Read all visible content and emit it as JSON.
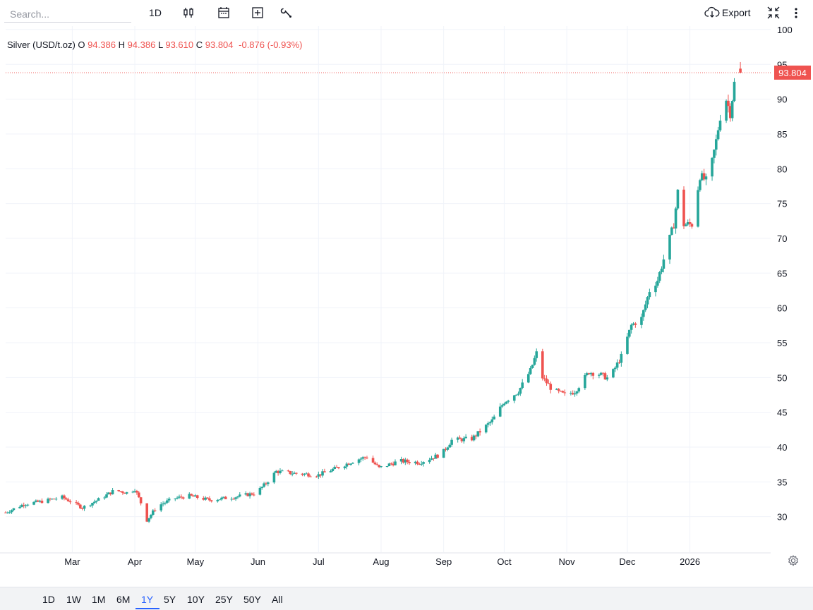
{
  "toolbar": {
    "search_placeholder": "Search...",
    "interval_label": "1D",
    "export_label": "Export"
  },
  "legend": {
    "symbol": "Silver (USD/t.oz)",
    "o_label": "O",
    "o_value": "94.386",
    "h_label": "H",
    "h_value": "94.386",
    "l_label": "L",
    "l_value": "93.610",
    "c_label": "C",
    "c_value": "93.804",
    "change": "-0.876 (-0.93%)"
  },
  "price_tag": "93.804",
  "ranges": [
    "1D",
    "1W",
    "1M",
    "6M",
    "1Y",
    "5Y",
    "10Y",
    "25Y",
    "50Y",
    "All"
  ],
  "active_range": "1Y",
  "colors": {
    "up": "#26a69a",
    "down": "#ef5350",
    "accent": "#2962ff",
    "grid": "#f0f3fa"
  },
  "chart_data": {
    "type": "candlestick",
    "title": "",
    "yticks": [
      30,
      35,
      40,
      45,
      50,
      55,
      60,
      65,
      70,
      75,
      80,
      85,
      90,
      95,
      100
    ],
    "ylim": [
      24.9,
      100.5
    ],
    "last_price": 93.804,
    "xticks": [
      {
        "label": "Mar",
        "date": "2025-03-01"
      },
      {
        "label": "Apr",
        "date": "2025-04-01"
      },
      {
        "label": "May",
        "date": "2025-05-01"
      },
      {
        "label": "Jun",
        "date": "2025-06-01"
      },
      {
        "label": "Jul",
        "date": "2025-07-01"
      },
      {
        "label": "Aug",
        "date": "2025-08-01"
      },
      {
        "label": "Sep",
        "date": "2025-09-01"
      },
      {
        "label": "Oct",
        "date": "2025-10-01"
      },
      {
        "label": "Nov",
        "date": "2025-11-01"
      },
      {
        "label": "Dec",
        "date": "2025-12-01"
      },
      {
        "label": "2026",
        "date": "2026-01-01"
      }
    ],
    "close_path": [
      [
        "2025-01-27",
        30.6
      ],
      [
        "2025-02-05",
        31.8
      ],
      [
        "2025-02-14",
        32.2
      ],
      [
        "2025-02-24",
        32.8
      ],
      [
        "2025-03-06",
        31.3
      ],
      [
        "2025-03-15",
        32.6
      ],
      [
        "2025-03-22",
        33.8
      ],
      [
        "2025-03-29",
        33.4
      ],
      [
        "2025-04-01",
        34.0
      ],
      [
        "2025-04-04",
        32.0
      ],
      [
        "2025-04-07",
        29.5
      ],
      [
        "2025-04-12",
        31.5
      ],
      [
        "2025-04-20",
        32.6
      ],
      [
        "2025-04-28",
        33.0
      ],
      [
        "2025-05-08",
        32.4
      ],
      [
        "2025-05-20",
        32.8
      ],
      [
        "2025-05-31",
        33.4
      ],
      [
        "2025-06-05",
        34.8
      ],
      [
        "2025-06-10",
        36.5
      ],
      [
        "2025-06-20",
        36.2
      ],
      [
        "2025-07-01",
        36.0
      ],
      [
        "2025-07-10",
        37.0
      ],
      [
        "2025-07-20",
        38.2
      ],
      [
        "2025-07-25",
        38.6
      ],
      [
        "2025-07-31",
        37.0
      ],
      [
        "2025-08-10",
        38.0
      ],
      [
        "2025-08-20",
        37.8
      ],
      [
        "2025-08-31",
        39.0
      ],
      [
        "2025-09-05",
        41.0
      ],
      [
        "2025-09-15",
        41.2
      ],
      [
        "2025-09-25",
        43.8
      ],
      [
        "2025-10-01",
        46.5
      ],
      [
        "2025-10-08",
        48.0
      ],
      [
        "2025-10-14",
        51.0
      ],
      [
        "2025-10-17",
        53.5
      ],
      [
        "2025-10-20",
        50.0
      ],
      [
        "2025-10-25",
        48.2
      ],
      [
        "2025-10-31",
        47.5
      ],
      [
        "2025-11-05",
        48.0
      ],
      [
        "2025-11-12",
        50.8
      ],
      [
        "2025-11-17",
        50.5
      ],
      [
        "2025-11-22",
        49.8
      ],
      [
        "2025-11-28",
        53.0
      ],
      [
        "2025-12-03",
        57.5
      ],
      [
        "2025-12-08",
        58.5
      ],
      [
        "2025-12-12",
        62.5
      ],
      [
        "2025-12-16",
        64.0
      ],
      [
        "2025-12-20",
        68.0
      ],
      [
        "2025-12-24",
        72.0
      ],
      [
        "2025-12-27",
        79.0
      ],
      [
        "2025-12-29",
        72.0
      ],
      [
        "2026-01-02",
        72.0
      ],
      [
        "2026-01-06",
        79.0
      ],
      [
        "2026-01-10",
        78.0
      ],
      [
        "2026-01-14",
        84.0
      ],
      [
        "2026-01-18",
        91.0
      ],
      [
        "2026-01-21",
        88.0
      ],
      [
        "2026-01-24",
        94.386
      ],
      [
        "2026-01-26",
        93.804
      ]
    ]
  }
}
